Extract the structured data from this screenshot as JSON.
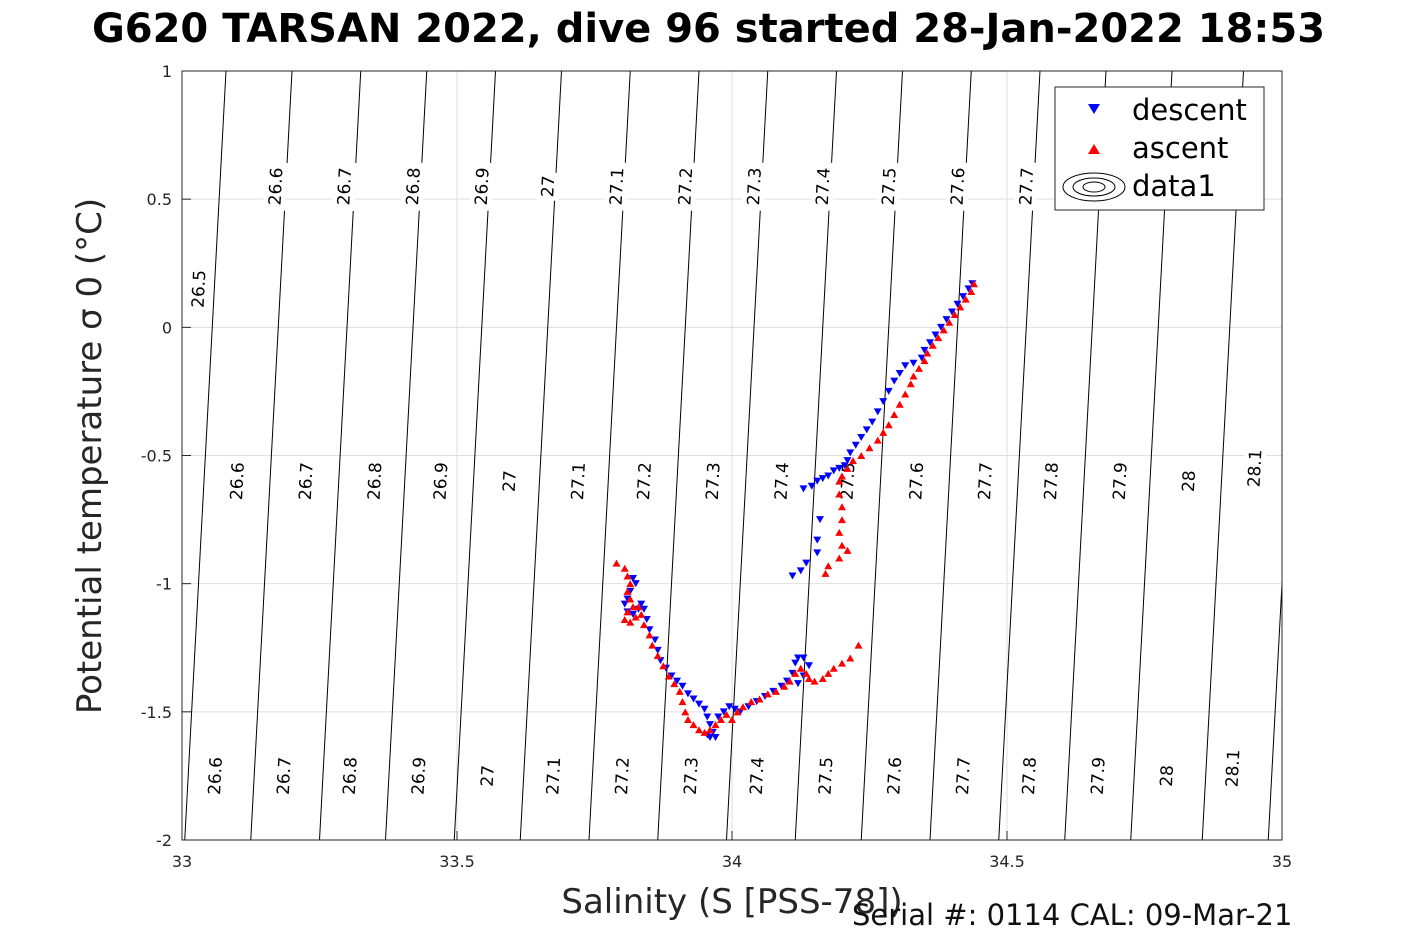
{
  "title": "G620 TARSAN 2022, dive 96 started 28-Jan-2022 18:53",
  "footer": "Serial #: 0114  CAL: 09-Mar-21",
  "colors": {
    "descent": "#0000ff",
    "ascent": "#ff0000",
    "contour": "#000000",
    "grid": "#dfdfdf"
  },
  "chart_data": {
    "type": "scatter",
    "xlabel": "Salinity (S [PSS-78])",
    "ylabel": "Potential temperature σ 0 (°C)",
    "xlim": [
      33,
      35
    ],
    "ylim": [
      -2,
      1
    ],
    "xticks": [
      "33",
      "33.5",
      "34",
      "34.5",
      "35"
    ],
    "yticks": [
      "1",
      "0.5",
      "0",
      "-0.5",
      "-1",
      "-1.5",
      "-2"
    ],
    "grid": true,
    "legend_position": "top-right",
    "legend": [
      "descent",
      "ascent",
      "data1"
    ],
    "contour_lines": [
      {
        "level": 26.5,
        "x_at_ymax": 33.08
      },
      {
        "level": 26.6,
        "x_at_ymax": 33.2
      },
      {
        "level": 26.7,
        "x_at_ymax": 33.325
      },
      {
        "level": 26.8,
        "x_at_ymax": 33.445
      },
      {
        "level": 26.9,
        "x_at_ymax": 33.57
      },
      {
        "level": 27.0,
        "x_at_ymax": 33.69
      },
      {
        "level": 27.1,
        "x_at_ymax": 33.815
      },
      {
        "level": 27.2,
        "x_at_ymax": 33.94
      },
      {
        "level": 27.3,
        "x_at_ymax": 34.065
      },
      {
        "level": 27.4,
        "x_at_ymax": 34.19
      },
      {
        "level": 27.5,
        "x_at_ymax": 34.31
      },
      {
        "level": 27.6,
        "x_at_ymax": 34.435
      },
      {
        "level": 27.7,
        "x_at_ymax": 34.56
      },
      {
        "level": 27.8,
        "x_at_ymax": 34.68
      },
      {
        "level": 27.9,
        "x_at_ymax": 34.8
      },
      {
        "level": 28.0,
        "x_at_ymax": 34.93
      },
      {
        "level": 28.1,
        "x_at_ymax": 35.05
      }
    ],
    "contour_labels": [
      {
        "text": "26.5",
        "x": 33.03,
        "y": 0.15
      },
      {
        "text": "26.6",
        "x": 33.17,
        "y": 0.55
      },
      {
        "text": "26.7",
        "x": 33.295,
        "y": 0.55
      },
      {
        "text": "26.8",
        "x": 33.42,
        "y": 0.55
      },
      {
        "text": "26.9",
        "x": 33.545,
        "y": 0.55
      },
      {
        "text": "27",
        "x": 33.665,
        "y": 0.55
      },
      {
        "text": "27.1",
        "x": 33.79,
        "y": 0.55
      },
      {
        "text": "27.2",
        "x": 33.915,
        "y": 0.55
      },
      {
        "text": "27.3",
        "x": 34.04,
        "y": 0.55
      },
      {
        "text": "27.4",
        "x": 34.165,
        "y": 0.55
      },
      {
        "text": "27.5",
        "x": 34.285,
        "y": 0.55
      },
      {
        "text": "27.6",
        "x": 34.41,
        "y": 0.55
      },
      {
        "text": "27.7",
        "x": 34.535,
        "y": 0.55
      },
      {
        "text": "26.6",
        "x": 33.1,
        "y": -0.6
      },
      {
        "text": "26.7",
        "x": 33.225,
        "y": -0.6
      },
      {
        "text": "26.8",
        "x": 33.35,
        "y": -0.6
      },
      {
        "text": "26.9",
        "x": 33.47,
        "y": -0.6
      },
      {
        "text": "27",
        "x": 33.595,
        "y": -0.6
      },
      {
        "text": "27.1",
        "x": 33.72,
        "y": -0.6
      },
      {
        "text": "27.2",
        "x": 33.84,
        "y": -0.6
      },
      {
        "text": "27.3",
        "x": 33.965,
        "y": -0.6
      },
      {
        "text": "27.4",
        "x": 34.09,
        "y": -0.6
      },
      {
        "text": "27.5",
        "x": 34.21,
        "y": -0.6
      },
      {
        "text": "27.6",
        "x": 34.335,
        "y": -0.6
      },
      {
        "text": "27.7",
        "x": 34.46,
        "y": -0.6
      },
      {
        "text": "27.8",
        "x": 34.58,
        "y": -0.6
      },
      {
        "text": "27.9",
        "x": 34.705,
        "y": -0.6
      },
      {
        "text": "28",
        "x": 34.83,
        "y": -0.6
      },
      {
        "text": "28.1",
        "x": 34.95,
        "y": -0.55
      },
      {
        "text": "26.6",
        "x": 33.06,
        "y": -1.75
      },
      {
        "text": "26.7",
        "x": 33.185,
        "y": -1.75
      },
      {
        "text": "26.8",
        "x": 33.305,
        "y": -1.75
      },
      {
        "text": "26.9",
        "x": 33.43,
        "y": -1.75
      },
      {
        "text": "27",
        "x": 33.555,
        "y": -1.75
      },
      {
        "text": "27.1",
        "x": 33.675,
        "y": -1.75
      },
      {
        "text": "27.2",
        "x": 33.8,
        "y": -1.75
      },
      {
        "text": "27.3",
        "x": 33.925,
        "y": -1.75
      },
      {
        "text": "27.4",
        "x": 34.045,
        "y": -1.75
      },
      {
        "text": "27.5",
        "x": 34.17,
        "y": -1.75
      },
      {
        "text": "27.6",
        "x": 34.295,
        "y": -1.75
      },
      {
        "text": "27.7",
        "x": 34.42,
        "y": -1.75
      },
      {
        "text": "27.8",
        "x": 34.54,
        "y": -1.75
      },
      {
        "text": "27.9",
        "x": 34.665,
        "y": -1.75
      },
      {
        "text": "28",
        "x": 34.79,
        "y": -1.75
      },
      {
        "text": "28.1",
        "x": 34.91,
        "y": -1.72
      }
    ],
    "series": [
      {
        "name": "descent",
        "marker": "triangle-down",
        "points": [
          [
            34.437,
            0.17
          ],
          [
            34.43,
            0.15
          ],
          [
            34.42,
            0.12
          ],
          [
            34.41,
            0.09
          ],
          [
            34.4,
            0.06
          ],
          [
            34.39,
            0.03
          ],
          [
            34.38,
            0.0
          ],
          [
            34.37,
            -0.03
          ],
          [
            34.36,
            -0.06
          ],
          [
            34.35,
            -0.09
          ],
          [
            34.345,
            -0.12
          ],
          [
            34.33,
            -0.14
          ],
          [
            34.315,
            -0.15
          ],
          [
            34.305,
            -0.18
          ],
          [
            34.295,
            -0.21
          ],
          [
            34.285,
            -0.25
          ],
          [
            34.275,
            -0.29
          ],
          [
            34.265,
            -0.33
          ],
          [
            34.255,
            -0.37
          ],
          [
            34.245,
            -0.4
          ],
          [
            34.235,
            -0.43
          ],
          [
            34.225,
            -0.46
          ],
          [
            34.215,
            -0.49
          ],
          [
            34.21,
            -0.52
          ],
          [
            34.205,
            -0.54
          ],
          [
            34.195,
            -0.55
          ],
          [
            34.185,
            -0.56
          ],
          [
            34.175,
            -0.58
          ],
          [
            34.165,
            -0.59
          ],
          [
            34.155,
            -0.6
          ],
          [
            34.145,
            -0.62
          ],
          [
            34.13,
            -0.63
          ],
          [
            34.16,
            -0.75
          ],
          [
            34.155,
            -0.83
          ],
          [
            34.155,
            -0.88
          ],
          [
            34.135,
            -0.92
          ],
          [
            34.125,
            -0.95
          ],
          [
            34.11,
            -0.97
          ],
          [
            33.82,
            -0.98
          ],
          [
            33.825,
            -1.0
          ],
          [
            33.815,
            -1.03
          ],
          [
            33.81,
            -1.06
          ],
          [
            33.805,
            -1.08
          ],
          [
            33.81,
            -1.11
          ],
          [
            33.82,
            -1.12
          ],
          [
            33.83,
            -1.1
          ],
          [
            33.835,
            -1.08
          ],
          [
            33.84,
            -1.1
          ],
          [
            33.845,
            -1.14
          ],
          [
            33.85,
            -1.18
          ],
          [
            33.86,
            -1.22
          ],
          [
            33.865,
            -1.26
          ],
          [
            33.87,
            -1.3
          ],
          [
            33.88,
            -1.33
          ],
          [
            33.89,
            -1.36
          ],
          [
            33.9,
            -1.38
          ],
          [
            33.91,
            -1.4
          ],
          [
            33.92,
            -1.43
          ],
          [
            33.93,
            -1.45
          ],
          [
            33.94,
            -1.47
          ],
          [
            33.95,
            -1.49
          ],
          [
            33.955,
            -1.52
          ],
          [
            33.96,
            -1.55
          ],
          [
            33.965,
            -1.58
          ],
          [
            33.97,
            -1.6
          ],
          [
            33.96,
            -1.6
          ],
          [
            33.955,
            -1.59
          ],
          [
            33.975,
            -1.52
          ],
          [
            33.985,
            -1.5
          ],
          [
            33.995,
            -1.48
          ],
          [
            34.005,
            -1.49
          ],
          [
            34.015,
            -1.5
          ],
          [
            34.03,
            -1.48
          ],
          [
            34.045,
            -1.46
          ],
          [
            34.06,
            -1.44
          ],
          [
            34.075,
            -1.42
          ],
          [
            34.09,
            -1.4
          ],
          [
            34.1,
            -1.38
          ],
          [
            34.11,
            -1.35
          ],
          [
            34.115,
            -1.31
          ],
          [
            34.12,
            -1.29
          ],
          [
            34.13,
            -1.29
          ],
          [
            34.14,
            -1.32
          ],
          [
            34.13,
            -1.36
          ],
          [
            34.12,
            -1.39
          ]
        ]
      },
      {
        "name": "ascent",
        "marker": "triangle-up",
        "points": [
          [
            34.44,
            0.17
          ],
          [
            34.435,
            0.14
          ],
          [
            34.425,
            0.11
          ],
          [
            34.415,
            0.08
          ],
          [
            34.405,
            0.05
          ],
          [
            34.395,
            0.02
          ],
          [
            34.385,
            -0.01
          ],
          [
            34.375,
            -0.04
          ],
          [
            34.365,
            -0.07
          ],
          [
            34.355,
            -0.1
          ],
          [
            34.35,
            -0.13
          ],
          [
            34.34,
            -0.16
          ],
          [
            34.33,
            -0.19
          ],
          [
            34.325,
            -0.22
          ],
          [
            34.315,
            -0.26
          ],
          [
            34.305,
            -0.3
          ],
          [
            34.295,
            -0.34
          ],
          [
            34.285,
            -0.38
          ],
          [
            34.275,
            -0.41
          ],
          [
            34.265,
            -0.44
          ],
          [
            34.25,
            -0.47
          ],
          [
            34.235,
            -0.5
          ],
          [
            34.22,
            -0.52
          ],
          [
            34.21,
            -0.55
          ],
          [
            34.2,
            -0.58
          ],
          [
            34.195,
            -0.6
          ],
          [
            34.195,
            -0.65
          ],
          [
            34.2,
            -0.7
          ],
          [
            34.2,
            -0.75
          ],
          [
            34.195,
            -0.8
          ],
          [
            34.2,
            -0.85
          ],
          [
            34.21,
            -0.87
          ],
          [
            34.195,
            -0.9
          ],
          [
            34.175,
            -0.93
          ],
          [
            34.17,
            -0.96
          ],
          [
            34.23,
            -1.24
          ],
          [
            34.215,
            -1.29
          ],
          [
            34.2,
            -1.31
          ],
          [
            34.185,
            -1.33
          ],
          [
            34.175,
            -1.35
          ],
          [
            34.165,
            -1.37
          ],
          [
            34.15,
            -1.38
          ],
          [
            33.79,
            -0.92
          ],
          [
            33.805,
            -0.94
          ],
          [
            33.81,
            -0.97
          ],
          [
            33.815,
            -1.0
          ],
          [
            33.81,
            -1.03
          ],
          [
            33.815,
            -1.06
          ],
          [
            33.82,
            -1.09
          ],
          [
            33.81,
            -1.11
          ],
          [
            33.805,
            -1.14
          ],
          [
            33.815,
            -1.15
          ],
          [
            33.825,
            -1.13
          ],
          [
            33.83,
            -1.09
          ],
          [
            33.835,
            -1.12
          ],
          [
            33.84,
            -1.16
          ],
          [
            33.85,
            -1.2
          ],
          [
            33.855,
            -1.24
          ],
          [
            33.865,
            -1.28
          ],
          [
            33.875,
            -1.32
          ],
          [
            33.885,
            -1.36
          ],
          [
            33.895,
            -1.39
          ],
          [
            33.905,
            -1.42
          ],
          [
            33.91,
            -1.46
          ],
          [
            33.915,
            -1.5
          ],
          [
            33.92,
            -1.53
          ],
          [
            33.93,
            -1.55
          ],
          [
            33.94,
            -1.57
          ],
          [
            33.95,
            -1.58
          ],
          [
            33.96,
            -1.57
          ],
          [
            33.97,
            -1.55
          ],
          [
            33.98,
            -1.53
          ],
          [
            33.99,
            -1.51
          ],
          [
            34.0,
            -1.53
          ],
          [
            34.01,
            -1.5
          ],
          [
            34.02,
            -1.48
          ],
          [
            34.035,
            -1.46
          ],
          [
            34.05,
            -1.45
          ],
          [
            34.065,
            -1.43
          ],
          [
            34.08,
            -1.42
          ],
          [
            34.095,
            -1.4
          ],
          [
            34.105,
            -1.38
          ],
          [
            34.115,
            -1.35
          ],
          [
            34.125,
            -1.33
          ],
          [
            34.135,
            -1.35
          ],
          [
            34.14,
            -1.37
          ]
        ]
      }
    ]
  }
}
